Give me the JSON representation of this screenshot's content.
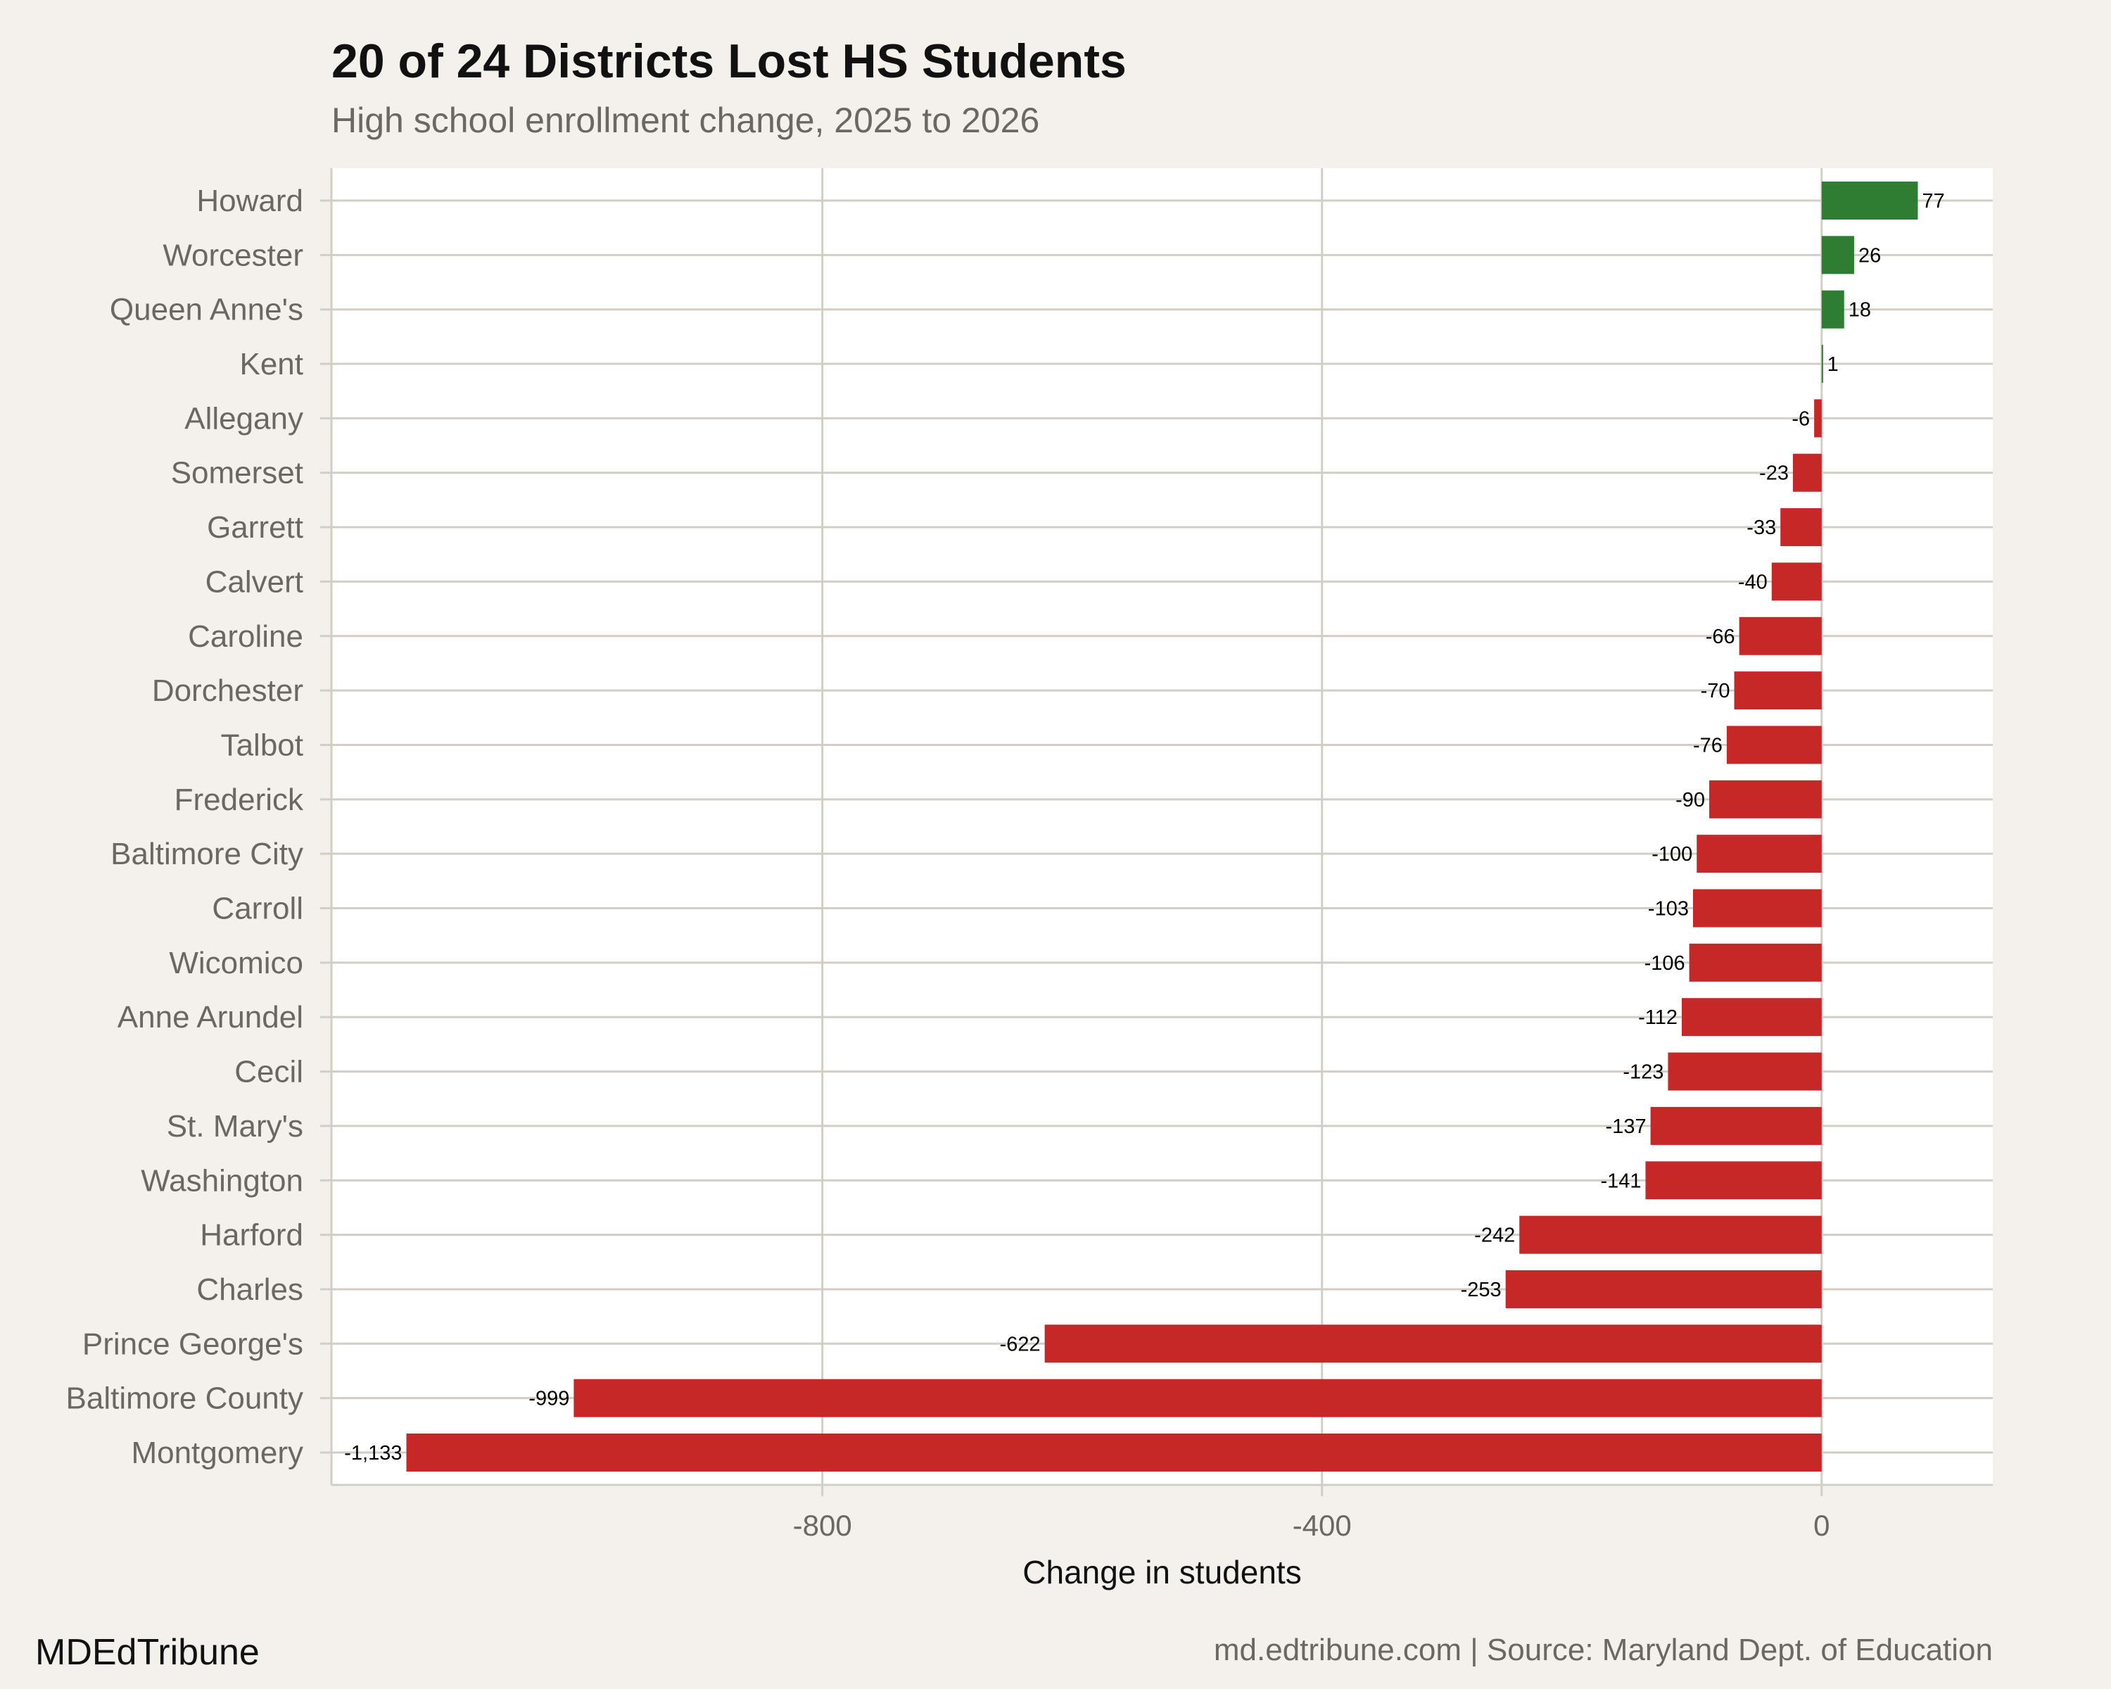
{
  "header": {
    "title": "20 of 24 Districts Lost HS Students",
    "subtitle": "High school enrollment change, 2025 to 2026"
  },
  "footer": {
    "brand": "MDEdTribune",
    "source": "md.edtribune.com | Source: Maryland Dept. of Education"
  },
  "colors": {
    "background": "#f4f1ec",
    "positive": "#2e7d32",
    "negative": "#c62828",
    "grid": "#d3cec5"
  },
  "chart_data": {
    "type": "bar",
    "orientation": "horizontal",
    "xlabel": "Change in students",
    "ylabel": "",
    "xlim": [
      -1193,
      137
    ],
    "xticks": [
      -800,
      -400,
      0
    ],
    "grid": true,
    "categories": [
      "Howard",
      "Worcester",
      "Queen Anne's",
      "Kent",
      "Allegany",
      "Somerset",
      "Garrett",
      "Calvert",
      "Caroline",
      "Dorchester",
      "Talbot",
      "Frederick",
      "Baltimore City",
      "Carroll",
      "Wicomico",
      "Anne Arundel",
      "Cecil",
      "St. Mary's",
      "Washington",
      "Harford",
      "Charles",
      "Prince George's",
      "Baltimore County",
      "Montgomery"
    ],
    "values": [
      77,
      26,
      18,
      1,
      -6,
      -23,
      -33,
      -40,
      -66,
      -70,
      -76,
      -90,
      -100,
      -103,
      -106,
      -112,
      -123,
      -137,
      -141,
      -242,
      -253,
      -622,
      -999,
      -1133
    ],
    "labels": [
      "77",
      "26",
      "18",
      "1",
      "-6",
      "-23",
      "-33",
      "-40",
      "-66",
      "-70",
      "-76",
      "-90",
      "-100",
      "-103",
      "-106",
      "-112",
      "-123",
      "-137",
      "-141",
      "-242",
      "-253",
      "-622",
      "-999",
      "-1,133"
    ]
  }
}
